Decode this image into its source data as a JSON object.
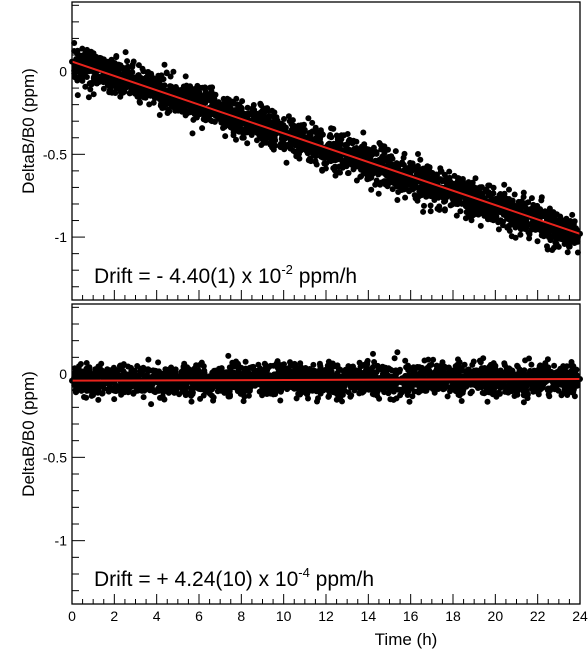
{
  "chart_data": [
    {
      "type": "scatter",
      "panel": "top",
      "xlim": [
        0,
        24
      ],
      "ylim": [
        -1.38,
        0.42
      ],
      "ylabel": "DeltaB/B0 (ppm)",
      "xlabel": "",
      "yticks": [
        0,
        -0.5,
        -1
      ],
      "ytick_labels": [
        "0",
        "-0.5",
        "-1"
      ],
      "grid": false,
      "annotation": {
        "prefix": "Drift = - 4.40(1) x 10",
        "exponent": "-2",
        "suffix": " ppm/h"
      },
      "fit_line": {
        "color": "#e8231c",
        "x": [
          0,
          24
        ],
        "y": [
          0.06,
          -0.98
        ]
      },
      "series": [
        {
          "marker_color": "#000000",
          "x": [
            0.0,
            0.5,
            1.0,
            1.5,
            2.0,
            2.5,
            3.0,
            3.5,
            4.0,
            4.5,
            5.0,
            5.5,
            6.0,
            6.5,
            7.0,
            7.5,
            8.0,
            8.5,
            9.0,
            9.5,
            10.0,
            10.5,
            11.0,
            11.5,
            12.0,
            12.5,
            13.0,
            13.5,
            14.0,
            14.5,
            15.0,
            15.5,
            16.0,
            16.5,
            17.0,
            17.5,
            18.0,
            18.5,
            19.0,
            19.5,
            20.0,
            20.5,
            21.0,
            21.5,
            22.0,
            22.5,
            23.0,
            23.5,
            24.0
          ],
          "y": [
            0.06,
            0.04,
            0.02,
            -0.01,
            -0.03,
            -0.05,
            -0.07,
            -0.09,
            -0.11,
            -0.14,
            -0.16,
            -0.18,
            -0.2,
            -0.22,
            -0.25,
            -0.27,
            -0.29,
            -0.31,
            -0.33,
            -0.36,
            -0.38,
            -0.4,
            -0.42,
            -0.44,
            -0.47,
            -0.49,
            -0.51,
            -0.53,
            -0.55,
            -0.58,
            -0.6,
            -0.62,
            -0.64,
            -0.66,
            -0.69,
            -0.71,
            -0.73,
            -0.75,
            -0.77,
            -0.8,
            -0.82,
            -0.84,
            -0.86,
            -0.88,
            -0.91,
            -0.93,
            -0.95,
            -0.97,
            -0.98
          ],
          "spread": 0.11
        }
      ]
    },
    {
      "type": "scatter",
      "panel": "bottom",
      "xlim": [
        0,
        24
      ],
      "ylim": [
        -1.38,
        0.42
      ],
      "ylabel": "DeltaB/B0 (ppm)",
      "xlabel": "Time (h)",
      "yticks": [
        0,
        -0.5,
        -1
      ],
      "ytick_labels": [
        "0",
        "-0.5",
        "-1"
      ],
      "xticks": [
        0,
        2,
        4,
        6,
        8,
        10,
        12,
        14,
        16,
        18,
        20,
        22,
        24
      ],
      "xtick_labels": [
        "0",
        "2",
        "4",
        "6",
        "8",
        "10",
        "12",
        "14",
        "16",
        "18",
        "20",
        "22",
        "24"
      ],
      "grid": false,
      "annotation": {
        "prefix": "Drift = + 4.24(10) x 10",
        "exponent": "-4",
        "suffix": " ppm/h"
      },
      "fit_line": {
        "color": "#e8231c",
        "x": [
          0,
          24
        ],
        "y": [
          -0.04,
          -0.03
        ]
      },
      "series": [
        {
          "marker_color": "#000000",
          "x": [
            0.0,
            0.5,
            1.0,
            1.5,
            2.0,
            2.5,
            3.0,
            3.5,
            4.0,
            4.5,
            5.0,
            5.5,
            6.0,
            6.5,
            7.0,
            7.5,
            8.0,
            8.5,
            9.0,
            9.5,
            10.0,
            10.5,
            11.0,
            11.5,
            12.0,
            12.5,
            13.0,
            13.5,
            14.0,
            14.5,
            15.0,
            15.5,
            16.0,
            16.5,
            17.0,
            17.5,
            18.0,
            18.5,
            19.0,
            19.5,
            20.0,
            20.5,
            21.0,
            21.5,
            22.0,
            22.5,
            23.0,
            23.5,
            24.0
          ],
          "y": [
            -0.04,
            -0.04,
            -0.04,
            -0.04,
            -0.04,
            -0.04,
            -0.04,
            -0.04,
            -0.04,
            -0.04,
            -0.04,
            -0.04,
            -0.04,
            -0.04,
            -0.04,
            -0.04,
            -0.04,
            -0.04,
            -0.04,
            -0.04,
            -0.04,
            -0.04,
            -0.04,
            -0.04,
            -0.04,
            -0.04,
            -0.04,
            -0.04,
            -0.04,
            -0.04,
            -0.04,
            -0.04,
            -0.03,
            -0.03,
            -0.03,
            -0.03,
            -0.03,
            -0.03,
            -0.03,
            -0.03,
            -0.03,
            -0.03,
            -0.03,
            -0.03,
            -0.03,
            -0.03,
            -0.03,
            -0.03,
            -0.03
          ],
          "spread": 0.09
        }
      ]
    }
  ]
}
